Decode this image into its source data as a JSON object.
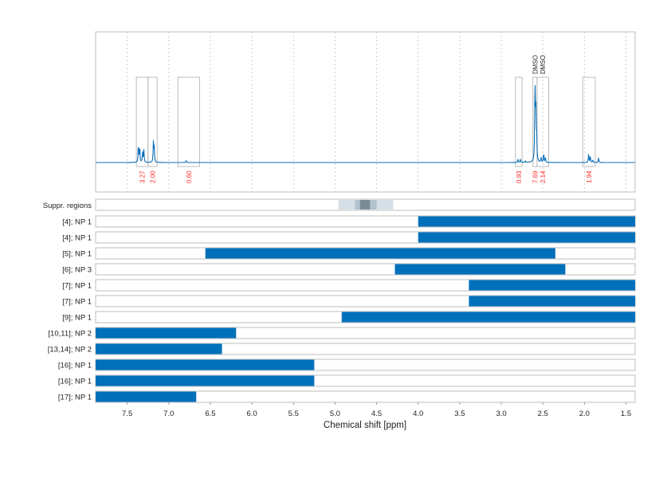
{
  "chart_data": {
    "type": "line",
    "xlabel": "Chemical shift [ppm]",
    "xlim": [
      7.88,
      1.39
    ],
    "x_reversed": true,
    "x_ticks": [
      7.5,
      7.0,
      6.5,
      6.0,
      5.5,
      5.0,
      4.5,
      4.0,
      3.5,
      3.0,
      2.5,
      2.0,
      1.5
    ],
    "x_tick_labels": [
      "7.5",
      "7.0",
      "6.5",
      "6.0",
      "5.5",
      "5.0",
      "4.5",
      "4.0",
      "3.5",
      "3.0",
      "2.5",
      "2.0",
      "1.5"
    ],
    "grid": "vertical dashed",
    "colors": {
      "spectrum": "#0a6fb8",
      "bar": "#0070bb",
      "integral": "#ff2a2a",
      "box": "#bbbbbb"
    },
    "spectrum_peaks": [
      {
        "ppm": 7.365,
        "intensity": 0.22
      },
      {
        "ppm": 7.35,
        "intensity": 0.19
      },
      {
        "ppm": 7.315,
        "intensity": 0.12
      },
      {
        "ppm": 7.3,
        "intensity": 0.15
      },
      {
        "ppm": 7.185,
        "intensity": 0.24
      },
      {
        "ppm": 7.175,
        "intensity": 0.18
      },
      {
        "ppm": 6.79,
        "intensity": 0.025
      },
      {
        "ppm": 2.8,
        "intensity": 0.04
      },
      {
        "ppm": 2.77,
        "intensity": 0.04
      },
      {
        "ppm": 2.71,
        "intensity": 0.02
      },
      {
        "ppm": 2.595,
        "intensity": 0.96
      },
      {
        "ppm": 2.585,
        "intensity": 0.65
      },
      {
        "ppm": 2.575,
        "intensity": 0.3
      },
      {
        "ppm": 2.52,
        "intensity": 0.06
      },
      {
        "ppm": 2.49,
        "intensity": 0.11
      },
      {
        "ppm": 2.47,
        "intensity": 0.06
      },
      {
        "ppm": 1.95,
        "intensity": 0.1
      },
      {
        "ppm": 1.93,
        "intensity": 0.08
      },
      {
        "ppm": 1.9,
        "intensity": 0.03
      },
      {
        "ppm": 1.83,
        "intensity": 0.06
      }
    ],
    "integrals": [
      {
        "from": 7.39,
        "to": 7.25,
        "value": "3.27"
      },
      {
        "from": 7.25,
        "to": 7.14,
        "value": "2.00"
      },
      {
        "from": 6.89,
        "to": 6.63,
        "value": "0.60"
      },
      {
        "from": 2.83,
        "to": 2.75,
        "value": "0.93"
      },
      {
        "from": 2.62,
        "to": 2.57,
        "value": "7.69",
        "annotation": "DMSO"
      },
      {
        "from": 2.57,
        "to": 2.43,
        "value": "2.14",
        "annotation": "DMSO"
      },
      {
        "from": 2.02,
        "to": 1.87,
        "value": "1.94"
      }
    ],
    "suppressed_regions": {
      "label": "Suppr. regions",
      "bands": [
        {
          "from": 4.96,
          "to": 4.3,
          "level": "light"
        },
        {
          "from": 4.76,
          "to": 4.5,
          "level": "medium"
        },
        {
          "from": 4.7,
          "to": 4.58,
          "level": "dark"
        }
      ]
    },
    "rows": [
      {
        "label": "[4]; NP 1",
        "from": 4.0,
        "to": 1.39
      },
      {
        "label": "[4]; NP 1",
        "from": 4.0,
        "to": 1.39
      },
      {
        "label": "[5]; NP 1",
        "from": 6.56,
        "to": 2.35
      },
      {
        "label": "[6]; NP 3",
        "from": 4.28,
        "to": 2.23
      },
      {
        "label": "[7]; NP 1",
        "from": 3.39,
        "to": 1.39
      },
      {
        "label": "[7]; NP 1",
        "from": 3.39,
        "to": 1.39
      },
      {
        "label": "[9]; NP 1",
        "from": 4.92,
        "to": 1.39
      },
      {
        "label": "[10,11]; NP 2",
        "from": 7.88,
        "to": 6.19
      },
      {
        "label": "[13,14]; NP 2",
        "from": 7.88,
        "to": 6.36
      },
      {
        "label": "[16]; NP 1",
        "from": 7.88,
        "to": 5.25
      },
      {
        "label": "[16]; NP 1",
        "from": 7.88,
        "to": 5.25
      },
      {
        "label": "[17]; NP 1",
        "from": 7.88,
        "to": 6.67
      }
    ]
  }
}
